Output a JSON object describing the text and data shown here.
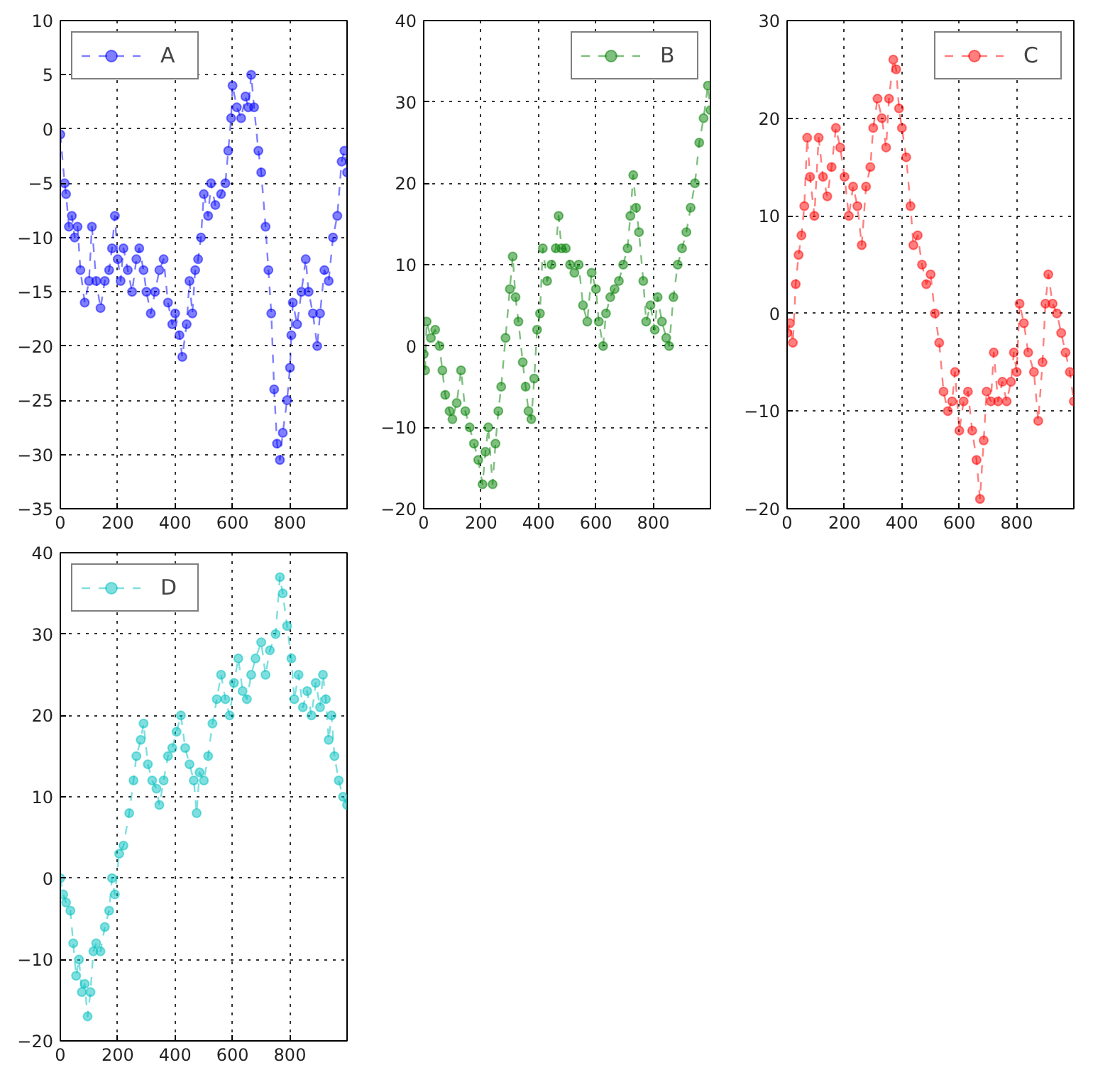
{
  "chart_data": [
    {
      "type": "line",
      "xlim": [
        0,
        999
      ],
      "xticks": [
        0,
        200,
        400,
        600,
        800
      ],
      "ylim": [
        -35,
        10
      ],
      "yticks": [
        -35,
        -30,
        -25,
        -20,
        -15,
        -10,
        -5,
        0,
        5,
        10
      ],
      "grid": true,
      "legend": "top left",
      "marker": "circle",
      "line_style": "dashed",
      "series": [
        {
          "name": "A",
          "color": "#0000ff",
          "x": [
            0,
            15,
            20,
            30,
            40,
            50,
            60,
            70,
            85,
            100,
            110,
            125,
            140,
            155,
            170,
            180,
            190,
            200,
            210,
            220,
            235,
            250,
            265,
            275,
            290,
            300,
            315,
            330,
            345,
            360,
            375,
            390,
            400,
            415,
            425,
            440,
            450,
            460,
            470,
            480,
            490,
            500,
            515,
            525,
            540,
            560,
            575,
            585,
            595,
            600,
            615,
            630,
            645,
            655,
            665,
            675,
            690,
            700,
            715,
            725,
            735,
            745,
            755,
            765,
            775,
            790,
            800,
            805,
            810,
            825,
            840,
            855,
            865,
            880,
            895,
            905,
            920,
            935,
            950,
            965,
            980,
            990,
            999
          ],
          "values": [
            -0.5,
            -5,
            -6,
            -9,
            -8,
            -10,
            -9,
            -13,
            -16,
            -14,
            -9,
            -14,
            -16.5,
            -14,
            -13,
            -11,
            -8,
            -12,
            -14,
            -11,
            -13,
            -15,
            -12,
            -11,
            -13,
            -15,
            -17,
            -15,
            -13,
            -12,
            -16,
            -18,
            -17,
            -19,
            -21,
            -18,
            -14,
            -17,
            -13,
            -12,
            -10,
            -6,
            -8,
            -5,
            -7,
            -6,
            -5,
            -2,
            1,
            4,
            2,
            1,
            3,
            2,
            5,
            2,
            -2,
            -4,
            -9,
            -13,
            -17,
            -24,
            -29,
            -30.5,
            -28,
            -25,
            -22,
            -19,
            -16,
            -18,
            -15,
            -12,
            -15,
            -17,
            -20,
            -17,
            -13,
            -14,
            -10,
            -8,
            -3,
            -2,
            -4
          ]
        }
      ]
    },
    {
      "type": "line",
      "xlim": [
        0,
        999
      ],
      "xticks": [
        0,
        200,
        400,
        600,
        800
      ],
      "ylim": [
        -20,
        40
      ],
      "yticks": [
        -20,
        -10,
        0,
        10,
        20,
        30,
        40
      ],
      "grid": true,
      "legend": "top right",
      "marker": "circle",
      "line_style": "dashed",
      "series": [
        {
          "name": "B",
          "color": "#008000",
          "x": [
            0,
            5,
            10,
            25,
            40,
            55,
            65,
            75,
            90,
            100,
            115,
            130,
            145,
            160,
            175,
            190,
            205,
            215,
            225,
            240,
            250,
            260,
            270,
            285,
            300,
            310,
            320,
            330,
            345,
            355,
            365,
            375,
            385,
            395,
            405,
            415,
            430,
            445,
            460,
            470,
            480,
            495,
            510,
            525,
            540,
            555,
            570,
            585,
            600,
            610,
            625,
            635,
            650,
            665,
            680,
            695,
            710,
            720,
            730,
            740,
            750,
            765,
            775,
            790,
            805,
            815,
            830,
            845,
            855,
            870,
            885,
            900,
            915,
            930,
            945,
            960,
            975,
            990,
            999
          ],
          "values": [
            -1,
            -3,
            3,
            1,
            2,
            0,
            -3,
            -6,
            -8,
            -9,
            -7,
            -3,
            -8,
            -10,
            -12,
            -14,
            -17,
            -13,
            -10,
            -17,
            -12,
            -8,
            -5,
            1,
            7,
            11,
            6,
            3,
            -2,
            -5,
            -8,
            -9,
            -4,
            2,
            4,
            12,
            8,
            10,
            12,
            16,
            12,
            12,
            10,
            9,
            10,
            5,
            3,
            9,
            7,
            3,
            0,
            4,
            6,
            7,
            8,
            10,
            12,
            16,
            21,
            17,
            14,
            8,
            3,
            5,
            2,
            6,
            3,
            1,
            0,
            6,
            10,
            12,
            14,
            17,
            20,
            25,
            28,
            32,
            29
          ]
        }
      ]
    },
    {
      "type": "line",
      "xlim": [
        0,
        999
      ],
      "xticks": [
        0,
        200,
        400,
        600,
        800
      ],
      "ylim": [
        -20,
        30
      ],
      "yticks": [
        -20,
        -10,
        0,
        10,
        20,
        30
      ],
      "grid": true,
      "legend": "top right",
      "marker": "circle",
      "line_style": "dashed",
      "series": [
        {
          "name": "C",
          "color": "#ff0000",
          "x": [
            0,
            10,
            20,
            30,
            40,
            50,
            60,
            70,
            80,
            95,
            110,
            125,
            140,
            155,
            170,
            185,
            200,
            215,
            230,
            245,
            260,
            275,
            290,
            300,
            315,
            330,
            345,
            355,
            370,
            380,
            390,
            400,
            415,
            430,
            440,
            455,
            470,
            485,
            500,
            515,
            530,
            545,
            560,
            575,
            585,
            600,
            615,
            630,
            645,
            660,
            672,
            685,
            695,
            710,
            720,
            735,
            750,
            765,
            780,
            790,
            800,
            810,
            825,
            840,
            860,
            875,
            890,
            900,
            910,
            925,
            940,
            955,
            970,
            985,
            999
          ],
          "values": [
            -2,
            -1,
            -3,
            3,
            6,
            8,
            11,
            18,
            14,
            10,
            18,
            14,
            12,
            15,
            19,
            17,
            14,
            10,
            13,
            11,
            7,
            13,
            15,
            19,
            22,
            20,
            17,
            22,
            26,
            25,
            21,
            19,
            16,
            11,
            7,
            8,
            5,
            3,
            4,
            0,
            -3,
            -8,
            -10,
            -9,
            -6,
            -12,
            -9,
            -8,
            -12,
            -15,
            -19,
            -13,
            -8,
            -9,
            -4,
            -9,
            -7,
            -9,
            -7,
            -4,
            -6,
            1,
            -1,
            -4,
            -6,
            -11,
            -5,
            1,
            4,
            1,
            0,
            -2,
            -4,
            -6,
            -9
          ]
        }
      ]
    },
    {
      "type": "line",
      "xlim": [
        0,
        999
      ],
      "xticks": [
        0,
        200,
        400,
        600,
        800
      ],
      "ylim": [
        -20,
        40
      ],
      "yticks": [
        -20,
        -10,
        0,
        10,
        20,
        30,
        40
      ],
      "grid": true,
      "legend": "top left",
      "marker": "circle",
      "line_style": "dashed",
      "series": [
        {
          "name": "D",
          "color": "#00bfbf",
          "x": [
            0,
            10,
            20,
            35,
            45,
            55,
            65,
            75,
            85,
            95,
            105,
            115,
            125,
            140,
            155,
            170,
            180,
            190,
            205,
            220,
            240,
            255,
            265,
            280,
            290,
            305,
            320,
            335,
            345,
            360,
            375,
            390,
            405,
            420,
            435,
            450,
            465,
            475,
            485,
            500,
            515,
            530,
            545,
            560,
            575,
            590,
            605,
            620,
            635,
            650,
            665,
            680,
            700,
            715,
            730,
            750,
            765,
            775,
            790,
            805,
            815,
            830,
            845,
            860,
            875,
            890,
            905,
            915,
            925,
            935,
            945,
            955,
            970,
            985,
            999
          ],
          "values": [
            0,
            -2,
            -3,
            -4,
            -8,
            -12,
            -10,
            -14,
            -13,
            -17,
            -14,
            -9,
            -8,
            -9,
            -6,
            -4,
            0,
            -2,
            3,
            4,
            8,
            12,
            15,
            17,
            19,
            14,
            12,
            11,
            9,
            12,
            15,
            16,
            18,
            20,
            16,
            14,
            12,
            8,
            13,
            12,
            15,
            19,
            22,
            25,
            22,
            20,
            24,
            27,
            23,
            22,
            25,
            27,
            29,
            25,
            28,
            30,
            37,
            35,
            31,
            27,
            22,
            25,
            21,
            23,
            20,
            24,
            21,
            25,
            22,
            17,
            20,
            15,
            12,
            10,
            9
          ]
        }
      ]
    }
  ]
}
